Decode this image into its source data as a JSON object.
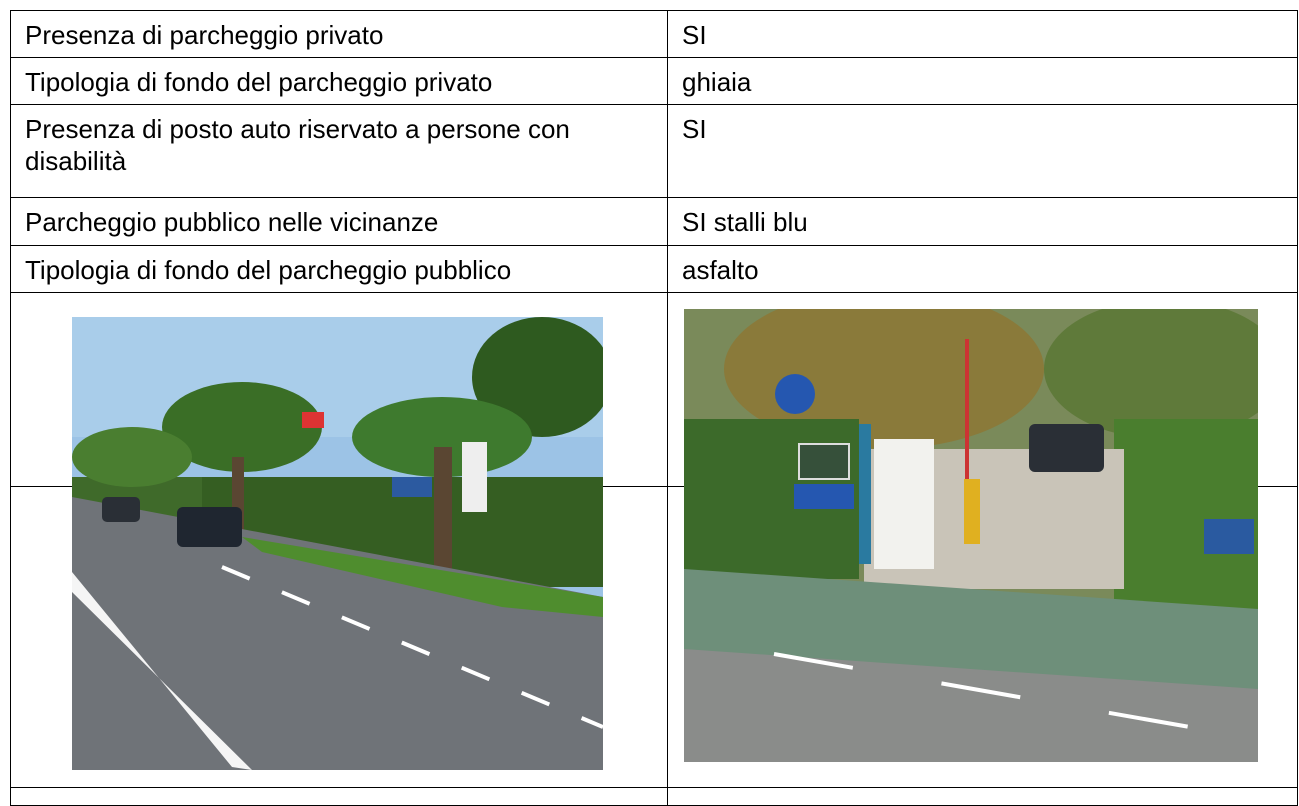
{
  "table": {
    "rows": [
      [
        "Presenza di parcheggio privato",
        "SI"
      ],
      [
        "Tipologia di fondo del parcheggio privato",
        "ghiaia"
      ],
      [
        "Presenza di posto auto riservato a persone con disabilità",
        "SI"
      ],
      [
        "Parcheggio pubblico nelle vicinanze",
        "SI stalli blu"
      ],
      [
        "Tipologia di fondo del parcheggio pubblico",
        "asfalto"
      ]
    ]
  }
}
